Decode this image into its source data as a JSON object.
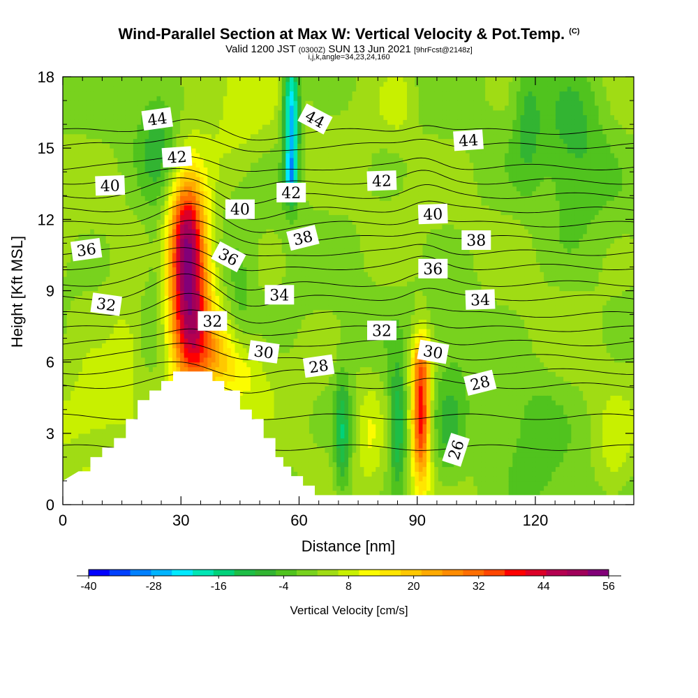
{
  "header": {
    "title": "Wind-Parallel Section at Max W: Vertical Velocity & Pot.Temp.",
    "title_mark": "(C)",
    "valid_prefix": "Valid 1200 JST",
    "valid_utc": "(0300Z)",
    "valid_date": "SUN 13 Jun 2021",
    "forecast": "[9hrFcst@2148z]",
    "indices": "i,j,k,angle=34,23,24,160"
  },
  "chart_data": {
    "type": "heatmap",
    "xlabel": "Distance [nm]",
    "ylabel": "Height [Kft MSL]",
    "xlim": [
      0,
      145
    ],
    "ylim": [
      0,
      18
    ],
    "x_ticks": [
      "0",
      "30",
      "60",
      "90",
      "120"
    ],
    "y_ticks": [
      "0",
      "3",
      "6",
      "9",
      "12",
      "15",
      "18"
    ],
    "background_value": 4,
    "velocity_features": [
      {
        "x": 32,
        "y": 9.5,
        "sx": 3.5,
        "sy": 2.8,
        "w": 52
      },
      {
        "x": 31,
        "y": 11.8,
        "sx": 2.5,
        "sy": 1.2,
        "w": 12
      },
      {
        "x": 36,
        "y": 6.5,
        "sx": 4.5,
        "sy": 1.2,
        "w": 14
      },
      {
        "x": 44,
        "y": 5.5,
        "sx": 5,
        "sy": 1.1,
        "w": 10
      },
      {
        "x": 91,
        "y": 3.8,
        "sx": 1.6,
        "sy": 2.0,
        "w": 40
      },
      {
        "x": 91,
        "y": 6.0,
        "sx": 2.2,
        "sy": 0.8,
        "w": 10
      },
      {
        "x": 58,
        "y": 16.3,
        "sx": 1.4,
        "sy": 2.0,
        "w": -32
      },
      {
        "x": 58,
        "y": 13.8,
        "sx": 1.0,
        "sy": 0.7,
        "w": -18
      },
      {
        "x": 71,
        "y": 3.0,
        "sx": 1.5,
        "sy": 1.8,
        "w": -16
      },
      {
        "x": 85,
        "y": 3.2,
        "sx": 1.5,
        "sy": 1.8,
        "w": -18
      },
      {
        "x": 78,
        "y": 3.0,
        "sx": 2.0,
        "sy": 1.7,
        "w": 6
      },
      {
        "x": 98,
        "y": 3.0,
        "sx": 2.5,
        "sy": 1.6,
        "w": -7
      },
      {
        "x": 8,
        "y": 4.0,
        "sx": 8,
        "sy": 1.8,
        "w": 8
      },
      {
        "x": 16,
        "y": 6.5,
        "sx": 2.5,
        "sy": 1.2,
        "w": 6
      },
      {
        "x": 24,
        "y": 15.5,
        "sx": 3.5,
        "sy": 1.8,
        "w": -8
      },
      {
        "x": 44,
        "y": 16.5,
        "sx": 6,
        "sy": 1.8,
        "w": 6
      },
      {
        "x": 24,
        "y": 9.8,
        "sx": 2.5,
        "sy": 2,
        "w": -6
      },
      {
        "x": 45,
        "y": 8.5,
        "sx": 2.5,
        "sy": 2,
        "w": -6
      },
      {
        "x": 130,
        "y": 15.5,
        "sx": 6,
        "sy": 2.5,
        "w": -9
      },
      {
        "x": 118,
        "y": 16.5,
        "sx": 2.5,
        "sy": 2.0,
        "w": -8
      },
      {
        "x": 120,
        "y": 2.5,
        "sx": 5,
        "sy": 2,
        "w": -6
      },
      {
        "x": 140,
        "y": 2.0,
        "sx": 3,
        "sy": 1.5,
        "w": 6
      },
      {
        "x": 100,
        "y": 7.5,
        "sx": 6,
        "sy": 2,
        "w": -4
      },
      {
        "x": 85,
        "y": 17,
        "sx": 3,
        "sy": 1,
        "w": 6
      }
    ],
    "theta_levels": [
      {
        "v": 26,
        "y": 2.4,
        "mtn": 0.0,
        "pert": 0.0
      },
      {
        "v": 28,
        "y": 5.0,
        "mtn": 0.2,
        "pert": 0.2
      },
      {
        "v": 30,
        "y": 6.2,
        "mtn": 0.35,
        "pert": 0.25
      },
      {
        "v": 32,
        "y": 7.4,
        "mtn": 0.4,
        "pert": 0.3
      },
      {
        "v": 34,
        "y": 8.7,
        "mtn": 0.45,
        "pert": 0.3
      },
      {
        "v": 36,
        "y": 10.0,
        "mtn": 0.45,
        "pert": 0.3
      },
      {
        "v": 38,
        "y": 11.2,
        "mtn": 0.4,
        "pert": 0.3
      },
      {
        "v": 40,
        "y": 12.4,
        "mtn": 0.35,
        "pert": 0.3
      },
      {
        "v": 42,
        "y": 13.6,
        "mtn": 0.3,
        "pert": 0.3
      },
      {
        "v": 44,
        "y": 15.1,
        "mtn": 0.25,
        "pert": 0.3
      }
    ],
    "theta_labels": [
      {
        "text": "44",
        "x": 24,
        "y": 16.2,
        "angle": -8
      },
      {
        "text": "44",
        "x": 64,
        "y": 16.2,
        "angle": 28
      },
      {
        "text": "44",
        "x": 103,
        "y": 15.3,
        "angle": -4
      },
      {
        "text": "42",
        "x": 29,
        "y": 14.6,
        "angle": -4
      },
      {
        "text": "42",
        "x": 58,
        "y": 13.1,
        "angle": 0
      },
      {
        "text": "42",
        "x": 81,
        "y": 13.6,
        "angle": -2
      },
      {
        "text": "40",
        "x": 12,
        "y": 13.4,
        "angle": -2
      },
      {
        "text": "40",
        "x": 45,
        "y": 12.4,
        "angle": 0
      },
      {
        "text": "40",
        "x": 94,
        "y": 12.2,
        "angle": -2
      },
      {
        "text": "38",
        "x": 61,
        "y": 11.2,
        "angle": -14
      },
      {
        "text": "38",
        "x": 105,
        "y": 11.1,
        "angle": 0
      },
      {
        "text": "36",
        "x": 6,
        "y": 10.7,
        "angle": -8
      },
      {
        "text": "36",
        "x": 42,
        "y": 10.4,
        "angle": 28
      },
      {
        "text": "36",
        "x": 94,
        "y": 9.9,
        "angle": 0
      },
      {
        "text": "34",
        "x": 55,
        "y": 8.8,
        "angle": 0
      },
      {
        "text": "34",
        "x": 106,
        "y": 8.6,
        "angle": -2
      },
      {
        "text": "32",
        "x": 11,
        "y": 8.4,
        "angle": 8
      },
      {
        "text": "32",
        "x": 38,
        "y": 7.7,
        "angle": 0
      },
      {
        "text": "32",
        "x": 81,
        "y": 7.3,
        "angle": 0
      },
      {
        "text": "30",
        "x": 51,
        "y": 6.4,
        "angle": 8
      },
      {
        "text": "30",
        "x": 94,
        "y": 6.4,
        "angle": 10
      },
      {
        "text": "28",
        "x": 65,
        "y": 5.8,
        "angle": -8
      },
      {
        "text": "28",
        "x": 106,
        "y": 5.1,
        "angle": -14
      },
      {
        "text": "26",
        "x": 100,
        "y": 2.3,
        "angle": -72
      }
    ],
    "terrain_steps": [
      [
        0,
        1.0
      ],
      [
        4,
        1.4
      ],
      [
        7,
        1.4
      ],
      [
        7,
        2.0
      ],
      [
        10,
        2.0
      ],
      [
        10,
        2.4
      ],
      [
        13,
        2.4
      ],
      [
        13,
        2.8
      ],
      [
        16,
        2.8
      ],
      [
        16,
        3.6
      ],
      [
        19,
        3.6
      ],
      [
        19,
        4.4
      ],
      [
        22,
        4.4
      ],
      [
        22,
        4.8
      ],
      [
        25,
        4.8
      ],
      [
        25,
        5.2
      ],
      [
        28,
        5.2
      ],
      [
        28,
        5.6
      ],
      [
        38,
        5.6
      ],
      [
        38,
        5.2
      ],
      [
        41,
        5.2
      ],
      [
        41,
        4.8
      ],
      [
        45,
        4.8
      ],
      [
        45,
        4.0
      ],
      [
        48,
        4.0
      ],
      [
        48,
        3.6
      ],
      [
        51,
        3.6
      ],
      [
        51,
        2.8
      ],
      [
        54,
        2.8
      ],
      [
        54,
        2.0
      ],
      [
        56,
        2.0
      ],
      [
        56,
        1.6
      ],
      [
        58,
        1.6
      ],
      [
        58,
        1.2
      ],
      [
        61,
        1.2
      ],
      [
        61,
        0.8
      ],
      [
        64,
        0.8
      ],
      [
        64,
        0.4
      ],
      [
        145,
        0.4
      ]
    ]
  },
  "colorbar": {
    "title": "Vertical Velocity [cm/s]",
    "min": -40,
    "max": 56,
    "step": 4,
    "tick_labels": [
      "-40",
      "-28",
      "-16",
      "-4",
      "8",
      "20",
      "32",
      "44",
      "56"
    ],
    "colors": [
      "#0000ff",
      "#0040ff",
      "#0080ff",
      "#00b4ff",
      "#00eaff",
      "#00e6b4",
      "#00d27a",
      "#1ebe46",
      "#32b432",
      "#50c31e",
      "#78d21e",
      "#a0dc14",
      "#c8f000",
      "#fcfc00",
      "#ffe600",
      "#ffc800",
      "#ffaa00",
      "#ff8c00",
      "#ff6e00",
      "#ff4600",
      "#ff0000",
      "#dc0028",
      "#b40050",
      "#a0005a",
      "#820078"
    ],
    "terrain_color": "#ffffff"
  }
}
